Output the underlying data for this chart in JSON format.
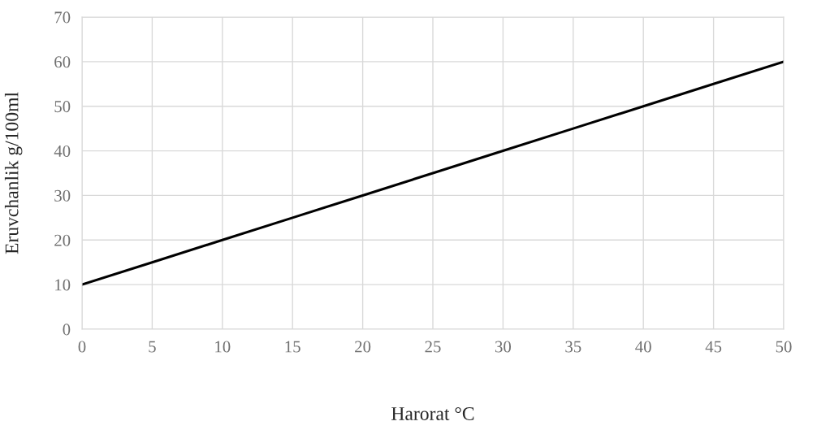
{
  "chart_data": {
    "type": "line",
    "xlabel": "Harorat °C",
    "ylabel": "Eruvchanlik g/100ml",
    "x": [
      0,
      5,
      10,
      15,
      20,
      25,
      30,
      35,
      40,
      45,
      50
    ],
    "series": [
      {
        "color": "#000000",
        "values": [
          10,
          15,
          20,
          25,
          30,
          35,
          40,
          45,
          50,
          55,
          60
        ]
      }
    ],
    "xlim": [
      0,
      50
    ],
    "xticks": [
      0,
      5,
      10,
      15,
      20,
      25,
      30,
      35,
      40,
      45,
      50
    ],
    "ylim": [
      0,
      70
    ],
    "yticks": [
      0,
      10,
      20,
      30,
      40,
      50,
      60,
      70
    ],
    "grid": true,
    "marker": "none",
    "line_style": "solid",
    "legend": false
  }
}
